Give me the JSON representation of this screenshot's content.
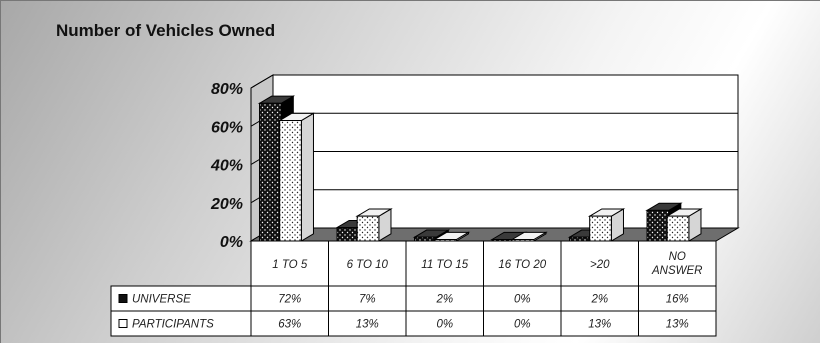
{
  "chart_data": {
    "type": "bar",
    "title": "Number of Vehicles Owned",
    "categories": [
      "1 TO 5",
      "6 TO 10",
      "11 TO 15",
      "16 TO 20",
      ">20",
      "NO ANSWER"
    ],
    "series": [
      {
        "name": "UNIVERSE",
        "values": [
          72,
          7,
          2,
          0,
          2,
          16
        ],
        "labels": [
          "72%",
          "7%",
          "2%",
          "0%",
          "2%",
          "16%"
        ],
        "color": "#111111",
        "dot_color": "#ffffff"
      },
      {
        "name": "PARTICIPANTS",
        "values": [
          63,
          13,
          0,
          0,
          13,
          13
        ],
        "labels": [
          "63%",
          "13%",
          "0%",
          "0%",
          "13%",
          "13%"
        ],
        "color": "#ffffff",
        "dot_color": "#111111"
      }
    ],
    "y_ticks": [
      "0%",
      "20%",
      "40%",
      "60%",
      "80%"
    ],
    "ylim": [
      0,
      80
    ],
    "xlabel": "",
    "ylabel": "",
    "grid": true,
    "data_table": true,
    "legend": "in data table"
  }
}
